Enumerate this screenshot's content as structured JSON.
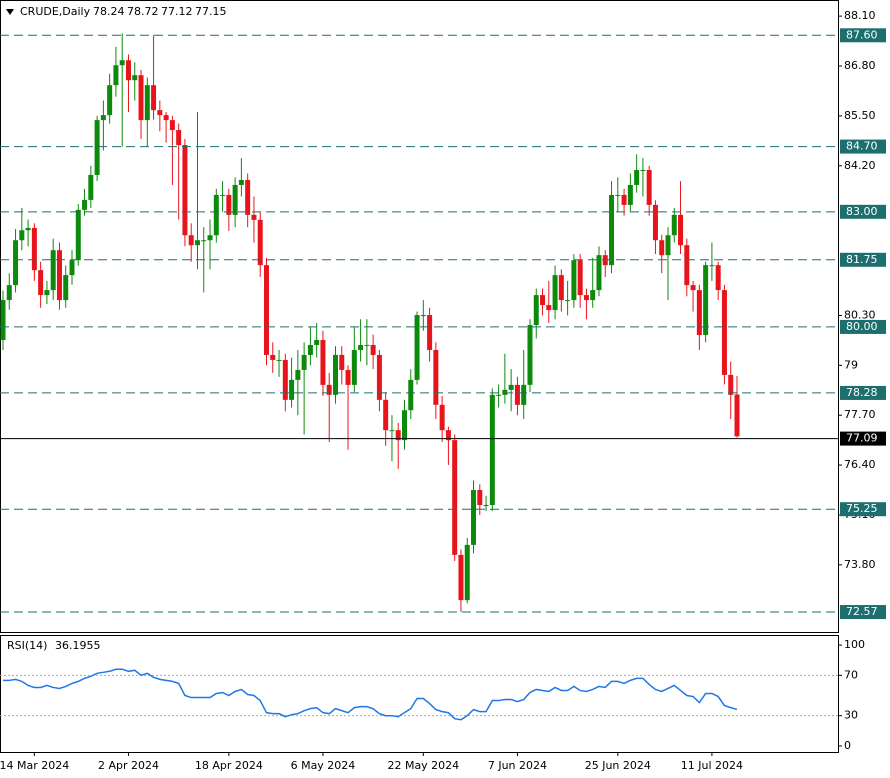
{
  "chart_data": [
    {
      "type": "candlestick",
      "title": "CRUDE,Daily",
      "categories": [
        null,
        null,
        null,
        null,
        null,
        "14 Mar 2024",
        null,
        null,
        null,
        null,
        null,
        null,
        null,
        null,
        null,
        null,
        null,
        null,
        null,
        null,
        "2 Apr 2024",
        null,
        null,
        null,
        null,
        null,
        null,
        null,
        null,
        null,
        null,
        null,
        null,
        null,
        null,
        null,
        "18 Apr 2024",
        null,
        null,
        null,
        null,
        null,
        null,
        null,
        null,
        null,
        null,
        null,
        null,
        null,
        null,
        "6 May 2024",
        null,
        null,
        null,
        null,
        null,
        null,
        null,
        null,
        null,
        null,
        null,
        null,
        null,
        null,
        null,
        "22 May 2024",
        null,
        null,
        null,
        null,
        null,
        null,
        null,
        null,
        null,
        null,
        null,
        null,
        null,
        null,
        "7 Jun 2024",
        null,
        null,
        null,
        null,
        null,
        null,
        null,
        null,
        null,
        null,
        null,
        null,
        null,
        null,
        null,
        "25 Jun 2024",
        null,
        null,
        null,
        null,
        null,
        null,
        null,
        null,
        null,
        null,
        null,
        null,
        null,
        null,
        "11 Jul 2024",
        null,
        null,
        null,
        null
      ],
      "open": [
        79.66,
        80.7,
        81.09,
        82.26,
        82.52,
        82.58,
        81.48,
        80.83,
        80.96,
        82.0,
        80.7,
        81.35,
        81.74,
        83.05,
        83.31,
        83.96,
        85.39,
        85.52,
        86.3,
        86.82,
        86.95,
        86.43,
        86.56,
        85.39,
        86.3,
        85.65,
        85.52,
        85.39,
        85.13,
        84.74,
        82.39,
        82.13,
        82.26,
        82.26,
        82.39,
        83.44,
        83.44,
        82.92,
        83.7,
        83.83,
        82.92,
        82.79,
        81.61,
        79.27,
        79.14,
        79.14,
        78.1,
        78.62,
        78.88,
        79.27,
        79.53,
        79.66,
        78.49,
        78.23,
        79.27,
        78.88,
        78.49,
        79.4,
        79.53,
        79.53,
        79.27,
        78.1,
        77.31,
        77.31,
        77.05,
        77.83,
        78.62,
        80.31,
        80.31,
        79.4,
        77.97,
        77.31,
        77.05,
        74.06,
        72.88,
        74.32,
        75.75,
        75.36,
        75.36,
        78.23,
        78.23,
        78.36,
        78.49,
        77.97,
        78.49,
        80.05,
        80.83,
        80.57,
        80.44,
        81.35,
        80.7,
        80.7,
        81.74,
        80.83,
        80.7,
        80.96,
        81.87,
        81.61,
        83.44,
        83.44,
        83.18,
        83.7,
        84.09,
        84.09,
        83.18,
        82.26,
        81.87,
        82.39,
        82.92,
        82.13,
        81.09,
        80.96,
        79.79,
        81.61,
        81.61,
        80.96,
        78.75,
        78.24
      ],
      "high": [
        80.95,
        81.4,
        82.55,
        83.1,
        82.8,
        82.7,
        81.7,
        81.2,
        82.3,
        82.2,
        81.6,
        82.0,
        83.2,
        83.6,
        84.2,
        85.5,
        85.9,
        86.6,
        87.3,
        87.65,
        87.1,
        86.9,
        86.7,
        86.5,
        87.6,
        85.9,
        85.6,
        85.5,
        85.3,
        84.9,
        82.7,
        85.6,
        82.6,
        82.8,
        83.6,
        83.8,
        83.6,
        83.9,
        84.4,
        84.0,
        83.4,
        83.0,
        81.8,
        79.6,
        79.4,
        79.3,
        79.2,
        79.4,
        79.6,
        80.0,
        80.1,
        79.9,
        78.8,
        79.5,
        79.5,
        79.0,
        80.0,
        80.2,
        80.2,
        79.8,
        79.4,
        78.3,
        77.7,
        77.5,
        78.1,
        78.9,
        80.4,
        80.7,
        80.5,
        79.6,
        78.2,
        77.4,
        77.2,
        74.2,
        74.5,
        76.0,
        75.9,
        75.6,
        78.4,
        78.5,
        79.3,
        78.9,
        78.7,
        79.4,
        80.2,
        81.0,
        81.0,
        81.2,
        81.6,
        81.5,
        81.2,
        81.9,
        81.9,
        81.0,
        81.8,
        82.1,
        82.0,
        83.8,
        83.9,
        83.6,
        84.0,
        84.5,
        84.4,
        84.2,
        83.3,
        82.4,
        82.6,
        83.1,
        83.8,
        82.3,
        81.2,
        81.1,
        81.7,
        82.2,
        81.7,
        81.1,
        79.1,
        78.72
      ],
      "low": [
        79.4,
        80.45,
        80.9,
        82.0,
        82.1,
        81.2,
        80.5,
        80.6,
        80.7,
        80.45,
        80.5,
        81.1,
        81.6,
        82.9,
        83.1,
        83.8,
        84.6,
        85.3,
        86.0,
        84.7,
        85.6,
        85.9,
        84.9,
        84.7,
        85.4,
        85.1,
        84.8,
        83.7,
        82.8,
        82.1,
        81.7,
        81.5,
        80.9,
        81.5,
        82.2,
        83.0,
        82.5,
        82.6,
        83.4,
        82.6,
        82.2,
        81.3,
        79.0,
        78.8,
        78.7,
        77.8,
        77.9,
        77.7,
        77.2,
        79.0,
        79.2,
        78.2,
        77.0,
        78.0,
        78.5,
        76.8,
        78.3,
        79.1,
        79.0,
        78.9,
        77.8,
        76.9,
        76.5,
        76.3,
        76.8,
        77.6,
        78.5,
        79.9,
        79.1,
        77.6,
        77.0,
        76.4,
        73.9,
        72.57,
        72.8,
        74.1,
        75.1,
        75.2,
        75.2,
        77.9,
        78.0,
        77.8,
        77.7,
        77.6,
        78.3,
        79.7,
        80.3,
        80.1,
        80.2,
        80.4,
        80.3,
        80.5,
        80.5,
        80.2,
        80.5,
        80.8,
        81.3,
        81.4,
        83.0,
        82.9,
        83.0,
        83.5,
        83.4,
        82.9,
        81.9,
        81.4,
        80.7,
        82.2,
        81.9,
        80.8,
        80.4,
        79.4,
        79.6,
        81.2,
        80.7,
        78.5,
        77.6,
        77.12
      ],
      "close": [
        80.7,
        81.09,
        82.26,
        82.52,
        82.58,
        81.48,
        80.83,
        80.96,
        82.0,
        80.7,
        81.35,
        81.74,
        83.05,
        83.31,
        83.96,
        85.39,
        85.52,
        86.3,
        86.82,
        86.95,
        86.43,
        86.56,
        85.39,
        86.3,
        85.65,
        85.52,
        85.39,
        85.13,
        84.74,
        82.39,
        82.13,
        82.26,
        82.26,
        82.39,
        83.44,
        83.44,
        82.92,
        83.7,
        83.83,
        82.92,
        82.79,
        81.61,
        79.27,
        79.14,
        79.14,
        78.1,
        78.62,
        78.88,
        79.27,
        79.53,
        79.66,
        78.49,
        78.23,
        79.27,
        78.88,
        78.49,
        79.4,
        79.53,
        79.53,
        79.27,
        78.1,
        77.31,
        77.31,
        77.05,
        77.83,
        78.62,
        80.31,
        80.31,
        79.4,
        77.97,
        77.31,
        77.05,
        74.06,
        72.88,
        74.32,
        75.75,
        75.36,
        75.36,
        78.23,
        78.23,
        78.36,
        78.49,
        77.97,
        78.49,
        80.05,
        80.83,
        80.57,
        80.44,
        81.35,
        80.7,
        80.7,
        81.74,
        80.83,
        80.7,
        80.96,
        81.87,
        81.61,
        83.44,
        83.44,
        83.18,
        83.7,
        84.09,
        84.09,
        83.18,
        82.26,
        81.87,
        82.39,
        82.92,
        82.13,
        81.09,
        80.96,
        79.79,
        81.61,
        81.61,
        80.96,
        78.75,
        78.23,
        77.15
      ],
      "up_color": "#0c8a0c",
      "down_color": "#e8141c",
      "ylim": [
        72.05,
        88.52
      ],
      "yticks": [
        {
          "value": 88.1,
          "label": "88.10"
        },
        {
          "value": 86.8,
          "label": "86.80"
        },
        {
          "value": 85.5,
          "label": "85.50"
        },
        {
          "value": 84.2,
          "label": "84.20"
        },
        {
          "value": 80.3,
          "label": "80.30"
        },
        79,
        {
          "value": 77.7,
          "label": "77.70"
        },
        {
          "value": 76.4,
          "label": "76.40"
        },
        {
          "value": 75.1,
          "label": "75.10"
        },
        {
          "value": 73.8,
          "label": "73.80"
        }
      ],
      "levels": [
        {
          "value": 87.6,
          "label": "87.60"
        },
        {
          "value": 84.7,
          "label": "84.70"
        },
        {
          "value": 83,
          "label": "83.00"
        },
        {
          "value": 81.75,
          "label": "81.75"
        },
        {
          "value": 80,
          "label": "80.00"
        },
        {
          "value": 78.28,
          "label": "78.28"
        },
        {
          "value": 75.25,
          "label": "75.25"
        },
        {
          "value": 72.57,
          "label": "72.57"
        }
      ],
      "level_color": "#1d6e6e",
      "current_price": {
        "value": 77.09,
        "label": "77.09"
      }
    },
    {
      "type": "line",
      "title": "RSI(14)",
      "color": "#1f77e6",
      "values": [
        65,
        65,
        66,
        64,
        60,
        58,
        58,
        60,
        58,
        57,
        59,
        62,
        64,
        67,
        69,
        72,
        73,
        74,
        76,
        76,
        74,
        75,
        70,
        72,
        68,
        66,
        65,
        64,
        62,
        50,
        48,
        48,
        48,
        48,
        52,
        53,
        50,
        54,
        56,
        51,
        50,
        45,
        33,
        32,
        32,
        29,
        31,
        32,
        35,
        37,
        38,
        33,
        32,
        37,
        35,
        33,
        38,
        39,
        39,
        37,
        32,
        30,
        30,
        29,
        33,
        37,
        47,
        47,
        42,
        36,
        34,
        33,
        27,
        26,
        30,
        36,
        34,
        34,
        45,
        45,
        46,
        46,
        44,
        46,
        53,
        56,
        55,
        54,
        58,
        55,
        55,
        59,
        55,
        54,
        56,
        59,
        58,
        64,
        64,
        62,
        65,
        67,
        67,
        61,
        56,
        54,
        57,
        60,
        55,
        50,
        49,
        43,
        52,
        52,
        49,
        40,
        38,
        36.1955
      ],
      "ylim": [
        -6,
        109
      ],
      "yticks": [
        100,
        70,
        30,
        0
      ],
      "levels": [
        70,
        30
      ]
    }
  ]
}
